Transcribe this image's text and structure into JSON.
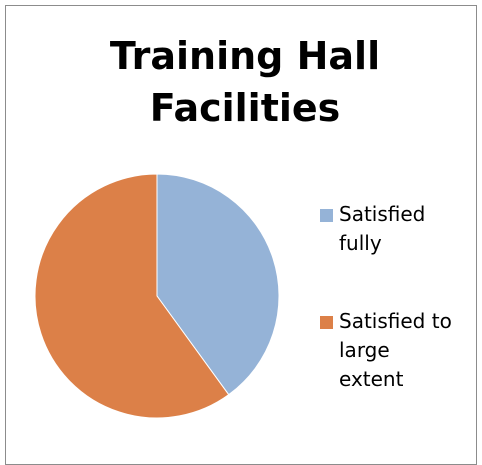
{
  "chart_data": {
    "type": "pie",
    "title": "Training Hall Facilities",
    "categories": [
      "Satisfied fully",
      "Satisfied to large extent"
    ],
    "values": [
      40,
      60
    ],
    "colors": [
      "#95b3d7",
      "#dc8048"
    ]
  }
}
